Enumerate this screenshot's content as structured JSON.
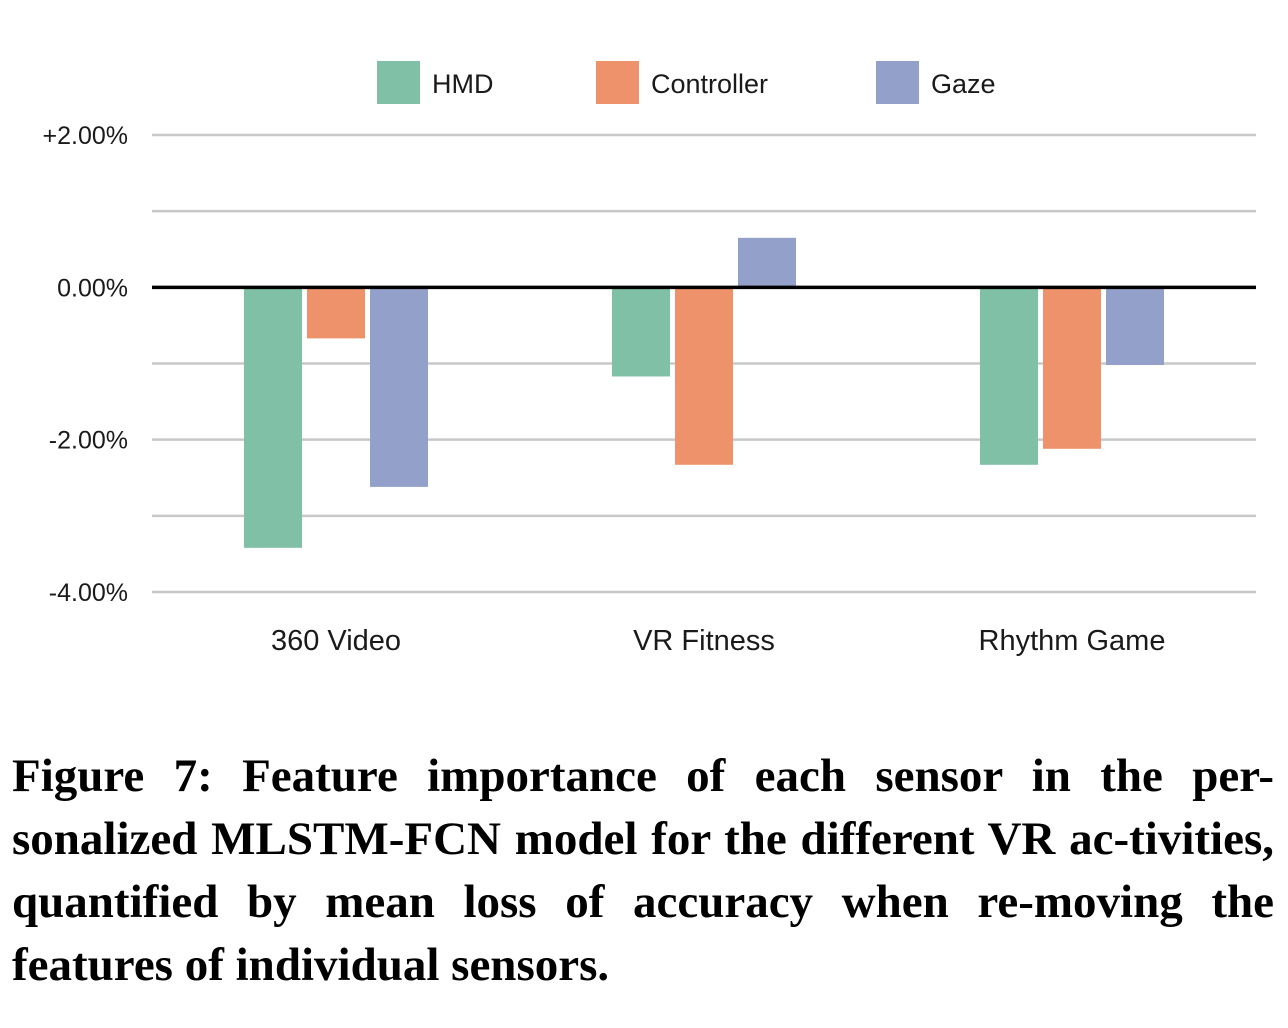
{
  "caption": "Figure 7: Feature importance of each sensor in the per-sonalized MLSTM-FCN model for the different VR ac-tivities, quantified by mean loss of accuracy when re-moving the features of individual sensors.",
  "chart_data": {
    "type": "bar",
    "categories": [
      "360 Video",
      "VR Fitness",
      "Rhythm Game"
    ],
    "series": [
      {
        "name": "HMD",
        "color": "#7fc0a6",
        "values": [
          -3.42,
          -1.17,
          -2.33
        ]
      },
      {
        "name": "Controller",
        "color": "#ee926c",
        "values": [
          -0.67,
          -2.33,
          -2.12
        ]
      },
      {
        "name": "Gaze",
        "color": "#93a1ca",
        "values": [
          -2.62,
          0.65,
          -1.02
        ]
      }
    ],
    "ylim": [
      -4,
      2
    ],
    "ytick_values": [
      -4,
      -3,
      -2,
      -1,
      0,
      1,
      2
    ],
    "ytick_labels": [
      "-4.00%",
      "",
      "-2.00%",
      "",
      "0.00%",
      "",
      "+2.00%"
    ],
    "title": "",
    "xlabel": "",
    "ylabel": "",
    "grid": true,
    "legend": "top"
  }
}
